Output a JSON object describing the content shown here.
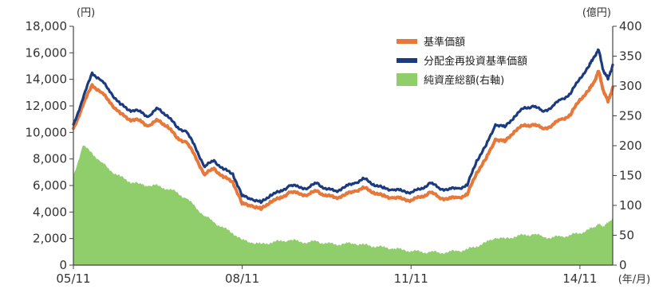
{
  "chart_data": {
    "type": "line",
    "left_axis": {
      "unit": "(円)",
      "ylim": [
        0,
        18000
      ],
      "ticks": [
        "0",
        "2,000",
        "4,000",
        "6,000",
        "8,000",
        "10,000",
        "12,000",
        "14,000",
        "16,000",
        "18,000"
      ]
    },
    "right_axis": {
      "unit": "(億円)",
      "ylim": [
        0,
        400
      ],
      "ticks": [
        "0",
        "50",
        "100",
        "150",
        "200",
        "250",
        "300",
        "350",
        "400"
      ]
    },
    "x_axis": {
      "unit": "(年/月)",
      "range": [
        "2005-11",
        "2015-06"
      ],
      "ticks": [
        {
          "label": "05/11",
          "date": "2005-11"
        },
        {
          "label": "08/11",
          "date": "2008-11"
        },
        {
          "label": "11/11",
          "date": "2011-11"
        },
        {
          "label": "14/11",
          "date": "2014-11"
        }
      ]
    },
    "legend_position": "top-right",
    "series": [
      {
        "name": "基準価額",
        "kind": "line",
        "axis": "left",
        "color": "#e8773a",
        "points": [
          [
            "2005-11",
            10300
          ],
          [
            "2006-01",
            12000
          ],
          [
            "2006-03",
            13600
          ],
          [
            "2006-05",
            13000
          ],
          [
            "2006-07",
            12200
          ],
          [
            "2006-09",
            11400
          ],
          [
            "2006-11",
            11000
          ],
          [
            "2007-01",
            10900
          ],
          [
            "2007-03",
            10500
          ],
          [
            "2007-05",
            10900
          ],
          [
            "2007-07",
            10500
          ],
          [
            "2007-09",
            9600
          ],
          [
            "2007-11",
            9300
          ],
          [
            "2008-01",
            8200
          ],
          [
            "2008-03",
            6800
          ],
          [
            "2008-05",
            7300
          ],
          [
            "2008-07",
            6600
          ],
          [
            "2008-09",
            6300
          ],
          [
            "2008-11",
            4600
          ],
          [
            "2009-01",
            4500
          ],
          [
            "2009-03",
            4200
          ],
          [
            "2009-05",
            4800
          ],
          [
            "2009-07",
            5000
          ],
          [
            "2009-09",
            5500
          ],
          [
            "2009-11",
            5400
          ],
          [
            "2010-01",
            5300
          ],
          [
            "2010-03",
            5600
          ],
          [
            "2010-05",
            5200
          ],
          [
            "2010-07",
            5100
          ],
          [
            "2010-09",
            5300
          ],
          [
            "2010-11",
            5600
          ],
          [
            "2011-01",
            5800
          ],
          [
            "2011-03",
            5500
          ],
          [
            "2011-05",
            5200
          ],
          [
            "2011-07",
            5100
          ],
          [
            "2011-09",
            5000
          ],
          [
            "2011-11",
            4900
          ],
          [
            "2012-01",
            5100
          ],
          [
            "2012-03",
            5500
          ],
          [
            "2012-05",
            5100
          ],
          [
            "2012-07",
            5000
          ],
          [
            "2012-09",
            5100
          ],
          [
            "2012-11",
            5300
          ],
          [
            "2013-01",
            7000
          ],
          [
            "2013-03",
            8000
          ],
          [
            "2013-05",
            9500
          ],
          [
            "2013-07",
            9300
          ],
          [
            "2013-09",
            10100
          ],
          [
            "2013-11",
            10500
          ],
          [
            "2014-01",
            10600
          ],
          [
            "2014-03",
            10300
          ],
          [
            "2014-05",
            10500
          ],
          [
            "2014-07",
            11000
          ],
          [
            "2014-09",
            11300
          ],
          [
            "2014-11",
            12500
          ],
          [
            "2015-01",
            13200
          ],
          [
            "2015-02",
            13800
          ],
          [
            "2015-03",
            14600
          ],
          [
            "2015-04",
            13200
          ],
          [
            "2015-05",
            12300
          ],
          [
            "2015-06",
            13400
          ]
        ]
      },
      {
        "name": "分配金再投資基準価額",
        "kind": "line",
        "axis": "left",
        "color": "#1b3a80",
        "points": [
          [
            "2005-11",
            10600
          ],
          [
            "2006-01",
            12500
          ],
          [
            "2006-03",
            14500
          ],
          [
            "2006-05",
            13900
          ],
          [
            "2006-07",
            13000
          ],
          [
            "2006-09",
            12100
          ],
          [
            "2006-11",
            11700
          ],
          [
            "2007-01",
            11600
          ],
          [
            "2007-03",
            11200
          ],
          [
            "2007-05",
            11800
          ],
          [
            "2007-07",
            11300
          ],
          [
            "2007-09",
            10400
          ],
          [
            "2007-11",
            10100
          ],
          [
            "2008-01",
            8900
          ],
          [
            "2008-03",
            7400
          ],
          [
            "2008-05",
            7900
          ],
          [
            "2008-07",
            7200
          ],
          [
            "2008-09",
            6900
          ],
          [
            "2008-11",
            5200
          ],
          [
            "2009-01",
            5000
          ],
          [
            "2009-03",
            4700
          ],
          [
            "2009-05",
            5300
          ],
          [
            "2009-07",
            5500
          ],
          [
            "2009-09",
            6000
          ],
          [
            "2009-11",
            5900
          ],
          [
            "2010-01",
            5800
          ],
          [
            "2010-03",
            6200
          ],
          [
            "2010-05",
            5700
          ],
          [
            "2010-07",
            5600
          ],
          [
            "2010-09",
            5900
          ],
          [
            "2010-11",
            6200
          ],
          [
            "2011-01",
            6500
          ],
          [
            "2011-03",
            6100
          ],
          [
            "2011-05",
            5800
          ],
          [
            "2011-07",
            5700
          ],
          [
            "2011-09",
            5600
          ],
          [
            "2011-11",
            5500
          ],
          [
            "2012-01",
            5700
          ],
          [
            "2012-03",
            6200
          ],
          [
            "2012-05",
            5800
          ],
          [
            "2012-07",
            5700
          ],
          [
            "2012-09",
            5800
          ],
          [
            "2012-11",
            6000
          ],
          [
            "2013-01",
            7900
          ],
          [
            "2013-03",
            9000
          ],
          [
            "2013-05",
            10600
          ],
          [
            "2013-07",
            10400
          ],
          [
            "2013-09",
            11200
          ],
          [
            "2013-11",
            11800
          ],
          [
            "2014-01",
            12000
          ],
          [
            "2014-03",
            11600
          ],
          [
            "2014-05",
            11900
          ],
          [
            "2014-07",
            12500
          ],
          [
            "2014-09",
            12900
          ],
          [
            "2014-11",
            14100
          ],
          [
            "2015-01",
            15000
          ],
          [
            "2015-02",
            15700
          ],
          [
            "2015-03",
            16200
          ],
          [
            "2015-04",
            14700
          ],
          [
            "2015-05",
            14000
          ],
          [
            "2015-06",
            15100
          ]
        ]
      },
      {
        "name": "純資産総額(右軸)",
        "kind": "area",
        "axis": "right",
        "color": "#8fce6a",
        "points": [
          [
            "2005-11",
            150
          ],
          [
            "2006-01",
            200
          ],
          [
            "2006-03",
            188
          ],
          [
            "2006-05",
            172
          ],
          [
            "2006-07",
            158
          ],
          [
            "2006-09",
            148
          ],
          [
            "2006-11",
            140
          ],
          [
            "2007-01",
            136
          ],
          [
            "2007-03",
            133
          ],
          [
            "2007-05",
            133
          ],
          [
            "2007-07",
            128
          ],
          [
            "2007-09",
            122
          ],
          [
            "2007-11",
            112
          ],
          [
            "2008-01",
            98
          ],
          [
            "2008-03",
            82
          ],
          [
            "2008-05",
            72
          ],
          [
            "2008-07",
            62
          ],
          [
            "2008-09",
            54
          ],
          [
            "2008-11",
            42
          ],
          [
            "2009-01",
            38
          ],
          [
            "2009-03",
            35
          ],
          [
            "2009-05",
            38
          ],
          [
            "2009-07",
            40
          ],
          [
            "2009-09",
            42
          ],
          [
            "2009-11",
            40
          ],
          [
            "2010-01",
            38
          ],
          [
            "2010-03",
            40
          ],
          [
            "2010-05",
            36
          ],
          [
            "2010-07",
            35
          ],
          [
            "2010-09",
            36
          ],
          [
            "2010-11",
            36
          ],
          [
            "2011-01",
            34
          ],
          [
            "2011-03",
            32
          ],
          [
            "2011-05",
            30
          ],
          [
            "2011-07",
            28
          ],
          [
            "2011-09",
            26
          ],
          [
            "2011-11",
            24
          ],
          [
            "2012-01",
            22
          ],
          [
            "2012-03",
            22
          ],
          [
            "2012-05",
            21
          ],
          [
            "2012-07",
            22
          ],
          [
            "2012-09",
            24
          ],
          [
            "2012-11",
            26
          ],
          [
            "2013-01",
            32
          ],
          [
            "2013-03",
            38
          ],
          [
            "2013-05",
            46
          ],
          [
            "2013-07",
            44
          ],
          [
            "2013-09",
            48
          ],
          [
            "2013-11",
            50
          ],
          [
            "2014-01",
            52
          ],
          [
            "2014-03",
            48
          ],
          [
            "2014-05",
            46
          ],
          [
            "2014-07",
            48
          ],
          [
            "2014-09",
            50
          ],
          [
            "2014-11",
            54
          ],
          [
            "2015-01",
            60
          ],
          [
            "2015-02",
            64
          ],
          [
            "2015-03",
            68
          ],
          [
            "2015-04",
            66
          ],
          [
            "2015-05",
            70
          ],
          [
            "2015-06",
            80
          ]
        ]
      }
    ]
  }
}
